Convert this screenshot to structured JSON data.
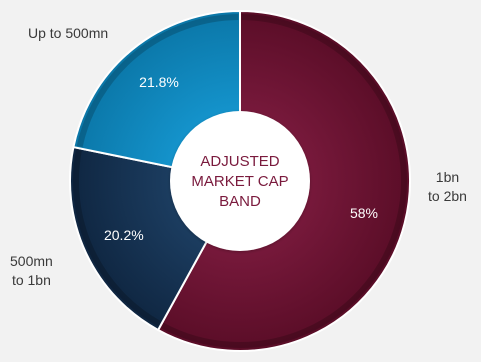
{
  "chart_data": {
    "type": "pie",
    "center_label": "ADJUSTED\nMARKET CAP\nBAND",
    "slices": [
      {
        "label": "1bn to 2bn",
        "label_lines": [
          "1bn",
          "to 2bn"
        ],
        "value": 58,
        "value_label": "58%",
        "color": "#7a1a3d",
        "color_dark": "#5a0d27"
      },
      {
        "label": "500mn to 1bn",
        "label_lines": [
          "500mn",
          "to 1bn"
        ],
        "value": 20.2,
        "value_label": "20.2%",
        "color": "#1d3f63",
        "color_dark": "#0f2641"
      },
      {
        "label": "Up to 500mn",
        "label_lines": [
          "Up to 500mn"
        ],
        "value": 21.8,
        "value_label": "21.8%",
        "color": "#1596cf",
        "color_dark": "#0b77a8"
      }
    ],
    "center_fill": "#ffffff",
    "center_text_color": "#7a1a3d",
    "value_text_color": "#ffffff"
  }
}
